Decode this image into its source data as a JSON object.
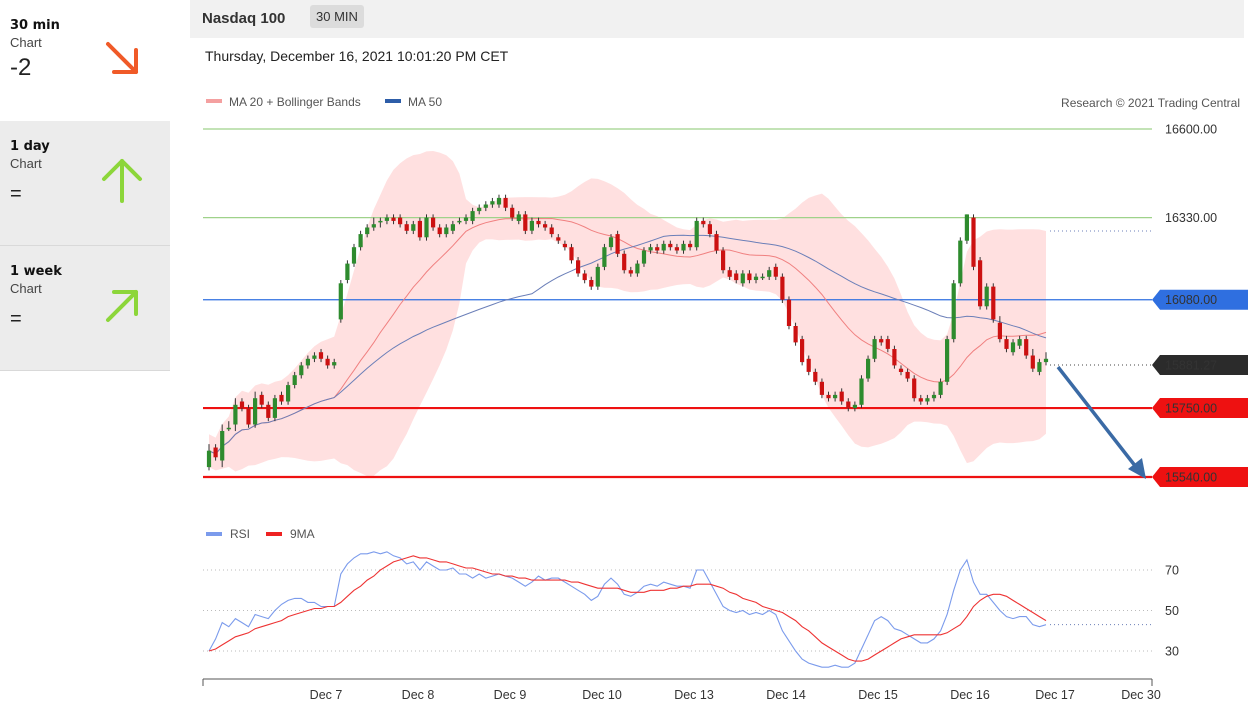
{
  "sidebar": {
    "items": [
      {
        "period": "30 min",
        "chart": "Chart",
        "value": "-2",
        "direction": "down",
        "color": "#f05a28"
      },
      {
        "period": "1 day",
        "chart": "Chart",
        "value": "=",
        "direction": "up",
        "color": "#8cd63a"
      },
      {
        "period": "1 week",
        "chart": "Chart",
        "value": "=",
        "direction": "up-right",
        "color": "#8cd63a"
      }
    ]
  },
  "header": {
    "title": "Nasdaq 100",
    "timeframe": "30 MIN",
    "datetime": "Thursday, December 16, 2021 10:01:20 PM CET"
  },
  "legend": {
    "ma20": "MA 20 + Bollinger Bands",
    "ma50": "MA 50",
    "copyright": "Research © 2021 Trading Central",
    "rsi": "RSI",
    "rsi_ma": "9MA"
  },
  "colors": {
    "bull": "#2e8b2e",
    "bear": "#cc1111",
    "band": "#ffd6d6",
    "ma20": "#f08080",
    "ma50": "#6b7fb8",
    "resistance": "#9fd28a",
    "support": "#ee1111",
    "pivot": "#2f6fe0",
    "arrow": "#3a6aa5",
    "rsi": "#7b9bec",
    "rsi_ma": "#ee3333"
  },
  "chart_data": [
    {
      "type": "candlestick",
      "title": "Nasdaq 100",
      "timeframe": "30 MIN",
      "x_labels": [
        "Dec 7",
        "Dec 8",
        "Dec 9",
        "Dec 10",
        "Dec 13",
        "Dec 14",
        "Dec 15",
        "Dec 16",
        "Dec 17",
        "Dec 30"
      ],
      "last_price": "15881.27",
      "levels": [
        {
          "value": 16600,
          "label": "16600.00",
          "kind": "resistance"
        },
        {
          "value": 16330,
          "label": "16330.00",
          "kind": "resistance"
        },
        {
          "value": 16080,
          "label": "16080.00",
          "kind": "pivot"
        },
        {
          "value": 15750,
          "label": "15750.00",
          "kind": "support"
        },
        {
          "value": 15540,
          "label": "15540.00",
          "kind": "support"
        }
      ],
      "ylim": [
        15520,
        16640
      ],
      "closes": [
        15620,
        15600,
        15680,
        15690,
        15760,
        15750,
        15700,
        15780,
        15760,
        15720,
        15780,
        15770,
        15820,
        15850,
        15880,
        15900,
        15910,
        15900,
        15880,
        15890,
        16130,
        16190,
        16240,
        16280,
        16300,
        16310,
        16320,
        16330,
        16320,
        16310,
        16290,
        16310,
        16270,
        16330,
        16300,
        16280,
        16300,
        16310,
        16320,
        16330,
        16350,
        16360,
        16370,
        16380,
        16390,
        16360,
        16330,
        16340,
        16290,
        16320,
        16310,
        16300,
        16280,
        16260,
        16240,
        16200,
        16160,
        16140,
        16120,
        16180,
        16240,
        16270,
        16220,
        16170,
        16160,
        16190,
        16230,
        16240,
        16230,
        16250,
        16240,
        16230,
        16250,
        16240,
        16320,
        16310,
        16280,
        16230,
        16170,
        16150,
        16140,
        16160,
        16140,
        16150,
        16150,
        16170,
        16150,
        16080,
        16000,
        15950,
        15890,
        15860,
        15830,
        15790,
        15780,
        15790,
        15770,
        15750,
        15760,
        15840,
        15900,
        15960,
        15950,
        15930,
        15880,
        15860,
        15840,
        15780,
        15770,
        15780,
        15790,
        15830,
        15960,
        16130,
        16260,
        16340,
        16180,
        16060,
        16120,
        16020,
        15960,
        15930,
        15950,
        15960,
        15910,
        15870,
        15890,
        15900
      ],
      "opens": [
        15570,
        15630,
        15590,
        15690,
        15700,
        15770,
        15750,
        15700,
        15790,
        15760,
        15720,
        15790,
        15770,
        15820,
        15850,
        15880,
        15900,
        15920,
        15900,
        15880,
        16020,
        16140,
        16190,
        16240,
        16280,
        16300,
        16320,
        16320,
        16330,
        16330,
        16310,
        16290,
        16320,
        16270,
        16330,
        16300,
        16280,
        16290,
        16320,
        16320,
        16320,
        16350,
        16360,
        16370,
        16370,
        16390,
        16360,
        16320,
        16340,
        16290,
        16320,
        16310,
        16300,
        16270,
        16250,
        16240,
        16200,
        16160,
        16140,
        16120,
        16180,
        16240,
        16280,
        16220,
        16170,
        16160,
        16190,
        16230,
        16240,
        16230,
        16250,
        16240,
        16230,
        16250,
        16240,
        16320,
        16310,
        16280,
        16230,
        16170,
        16160,
        16130,
        16160,
        16140,
        16150,
        16150,
        16180,
        16150,
        16080,
        16000,
        15960,
        15900,
        15860,
        15830,
        15790,
        15780,
        15800,
        15770,
        15750,
        15760,
        15840,
        15900,
        15960,
        15960,
        15930,
        15870,
        15860,
        15840,
        15780,
        15770,
        15780,
        15790,
        15830,
        15960,
        16130,
        16260,
        16330,
        16200,
        16060,
        16120,
        16010,
        15960,
        15920,
        15940,
        15960,
        15910,
        15860,
        15890
      ],
      "highs": [
        15640,
        15640,
        15700,
        15710,
        15780,
        15780,
        15760,
        15800,
        15800,
        15770,
        15790,
        15800,
        15830,
        15860,
        15890,
        15910,
        15920,
        15930,
        15910,
        15900,
        16140,
        16200,
        16250,
        16290,
        16310,
        16330,
        16330,
        16340,
        16340,
        16340,
        16320,
        16320,
        16330,
        16340,
        16340,
        16310,
        16310,
        16320,
        16330,
        16340,
        16360,
        16370,
        16380,
        16390,
        16400,
        16400,
        16370,
        16350,
        16350,
        16330,
        16330,
        16320,
        16310,
        16280,
        16260,
        16250,
        16210,
        16170,
        16150,
        16190,
        16250,
        16280,
        16290,
        16230,
        16180,
        16200,
        16240,
        16250,
        16250,
        16260,
        16260,
        16250,
        16260,
        16260,
        16330,
        16330,
        16320,
        16290,
        16240,
        16180,
        16170,
        16170,
        16170,
        16160,
        16160,
        16180,
        16190,
        16160,
        16090,
        16010,
        15970,
        15910,
        15870,
        15840,
        15800,
        15800,
        15810,
        15780,
        15770,
        15850,
        15910,
        15970,
        15970,
        15970,
        15940,
        15880,
        15870,
        15850,
        15790,
        15790,
        15800,
        15840,
        15970,
        16140,
        16270,
        16340,
        16340,
        16210,
        16130,
        16130,
        16030,
        15970,
        15960,
        15970,
        15970,
        15930,
        15900,
        15920
      ],
      "lows": [
        15560,
        15590,
        15570,
        15680,
        15680,
        15740,
        15690,
        15690,
        15750,
        15710,
        15710,
        15760,
        15760,
        15810,
        15840,
        15870,
        15890,
        15890,
        15870,
        15870,
        16010,
        16130,
        16180,
        16230,
        16270,
        16290,
        16300,
        16310,
        16310,
        16300,
        16280,
        16280,
        16260,
        16260,
        16290,
        16270,
        16270,
        16280,
        16310,
        16310,
        16310,
        16340,
        16350,
        16360,
        16360,
        16350,
        16320,
        16310,
        16280,
        16280,
        16300,
        16290,
        16270,
        16250,
        16230,
        16190,
        16150,
        16130,
        16110,
        16110,
        16170,
        16230,
        16210,
        16160,
        16150,
        16150,
        16180,
        16220,
        16220,
        16220,
        16230,
        16220,
        16220,
        16230,
        16230,
        16300,
        16270,
        16220,
        16160,
        16140,
        16130,
        16120,
        16130,
        16130,
        16140,
        16140,
        16140,
        16070,
        15990,
        15940,
        15880,
        15850,
        15820,
        15780,
        15770,
        15770,
        15760,
        15740,
        15740,
        15750,
        15830,
        15890,
        15940,
        15920,
        15870,
        15850,
        15830,
        15770,
        15760,
        15760,
        15770,
        15780,
        15820,
        15950,
        16120,
        16250,
        16170,
        16050,
        16050,
        16010,
        15950,
        15920,
        15910,
        15930,
        15900,
        15860,
        15850,
        15880
      ]
    },
    {
      "type": "line",
      "title": "RSI",
      "ylim": [
        20,
        85
      ],
      "y_ticks": [
        30,
        50,
        70
      ],
      "series": [
        {
          "name": "RSI",
          "values": [
            30,
            36,
            44,
            42,
            46,
            44,
            42,
            48,
            47,
            46,
            50,
            53,
            55,
            56,
            56,
            54,
            54,
            52,
            52,
            52,
            68,
            73,
            76,
            78,
            78,
            79,
            78,
            79,
            77,
            76,
            73,
            74,
            70,
            74,
            72,
            70,
            70,
            71,
            68,
            68,
            66,
            68,
            66,
            67,
            68,
            67,
            66,
            64,
            62,
            64,
            67,
            65,
            66,
            66,
            64,
            62,
            60,
            58,
            55,
            57,
            63,
            66,
            63,
            58,
            57,
            59,
            62,
            63,
            62,
            64,
            63,
            62,
            62,
            61,
            70,
            70,
            64,
            58,
            52,
            50,
            49,
            50,
            48,
            49,
            48,
            50,
            48,
            40,
            35,
            30,
            26,
            24,
            23,
            22,
            22,
            23,
            22,
            22,
            24,
            31,
            38,
            45,
            47,
            45,
            41,
            40,
            38,
            36,
            34,
            34,
            36,
            40,
            48,
            60,
            70,
            75,
            64,
            58,
            58,
            54,
            50,
            47,
            46,
            47,
            47,
            43,
            42,
            43
          ]
        },
        {
          "name": "9MA",
          "values": [
            30,
            31,
            33,
            35,
            37,
            38,
            39,
            41,
            42,
            43,
            44,
            45,
            47,
            48,
            49,
            50,
            51,
            51,
            52,
            52,
            54,
            57,
            60,
            62,
            65,
            67,
            70,
            72,
            74,
            75,
            76,
            77,
            76,
            76,
            75,
            74,
            74,
            73,
            72,
            71,
            71,
            70,
            69,
            68,
            68,
            67,
            67,
            66,
            66,
            65,
            65,
            65,
            65,
            65,
            65,
            64,
            64,
            63,
            62,
            61,
            61,
            61,
            61,
            60,
            59,
            59,
            59,
            60,
            60,
            60,
            61,
            61,
            62,
            62,
            63,
            63,
            63,
            62,
            61,
            59,
            58,
            56,
            55,
            54,
            52,
            51,
            50,
            49,
            47,
            45,
            42,
            40,
            37,
            34,
            32,
            30,
            28,
            26,
            25,
            25,
            26,
            28,
            30,
            32,
            34,
            36,
            37,
            38,
            38,
            38,
            38,
            38,
            39,
            41,
            43,
            47,
            52,
            55,
            57,
            58,
            58,
            57,
            55,
            53,
            51,
            49,
            47,
            45
          ]
        }
      ]
    }
  ]
}
